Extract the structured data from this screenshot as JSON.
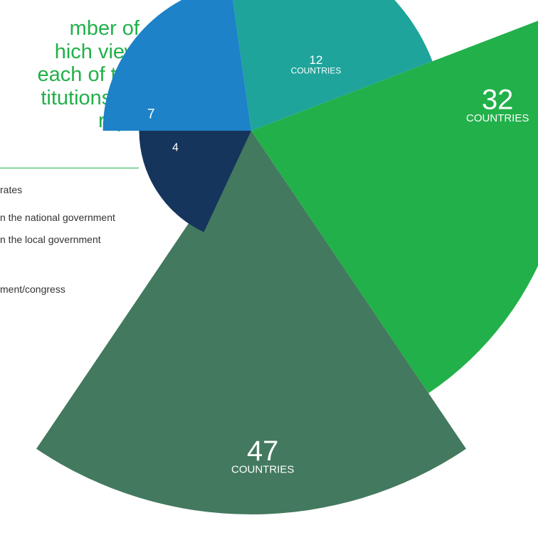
{
  "title_lines": [
    "mber of",
    "hich view",
    "each of the",
    "titutions as",
    "rupt."
  ],
  "chart_data": {
    "type": "polar-area",
    "title": "mber of hich view each of the titutions as rupt.",
    "categories": [
      "rates",
      "n the national government",
      "n the local government",
      "",
      "ment/congress"
    ],
    "values": [
      4,
      7,
      12,
      32,
      47
    ],
    "unit_label": "COUNTRIES",
    "colors": [
      "#15355c",
      "#1d82c8",
      "#1ea49b",
      "#22b04a",
      "#43795e"
    ],
    "legend_placement": "left"
  }
}
